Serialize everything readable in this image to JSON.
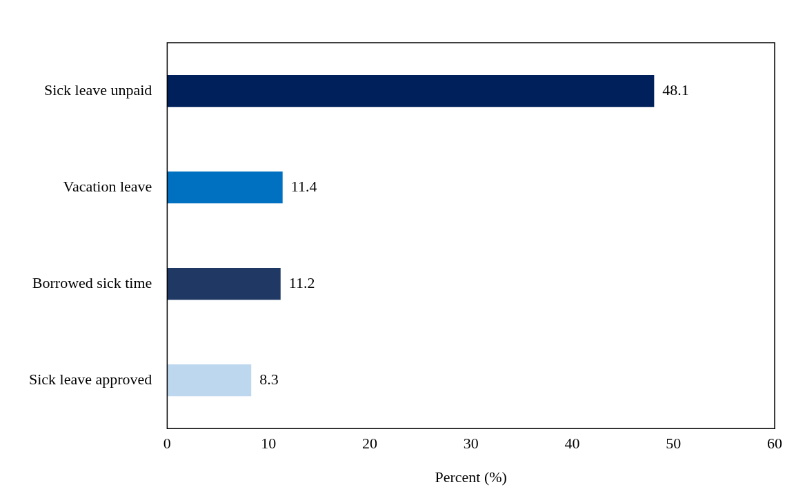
{
  "chart_data": {
    "type": "bar",
    "orientation": "horizontal",
    "xlabel": "Percent (%)",
    "categories": [
      "Sick leave unpaid",
      "Vacation leave",
      "Borrowed sick time",
      "Sick leave approved"
    ],
    "values": [
      48.1,
      11.4,
      11.2,
      8.3
    ],
    "colors": [
      "#00205b",
      "#0070c0",
      "#1f3864",
      "#bdd7ee"
    ],
    "xlim": [
      0,
      60
    ],
    "xticks": [
      0,
      10,
      20,
      30,
      40,
      50,
      60
    ],
    "grid": false,
    "legend": false,
    "data_labels": true
  }
}
